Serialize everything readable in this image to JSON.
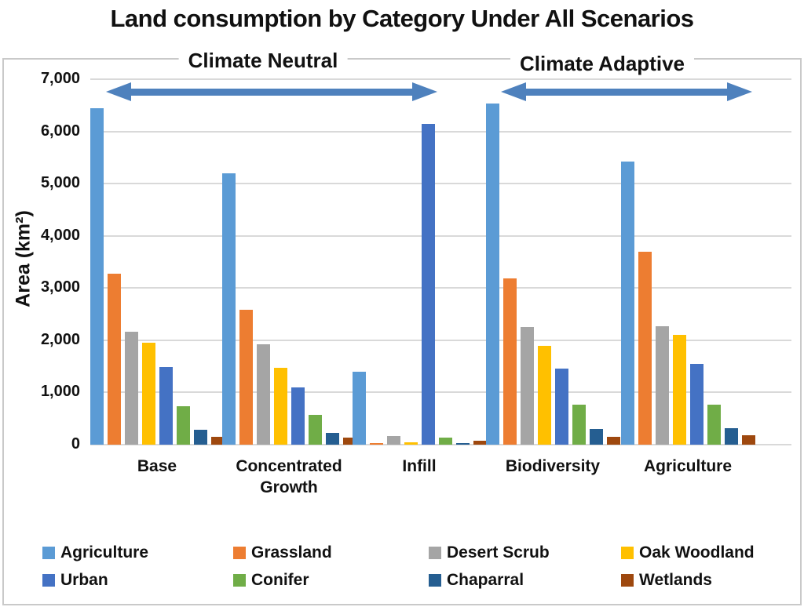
{
  "title": "Land consumption by Category Under All Scenarios",
  "annotations": {
    "left_group_label": "Climate Neutral",
    "right_group_label": "Climate Adaptive"
  },
  "colors": {
    "arrow": "#4E81BD",
    "gridline": "#D9D9D9",
    "frame_border": "#C9C9C9",
    "text": "#111111"
  },
  "chart_data": {
    "type": "bar",
    "title": "Land consumption by Category Under All Scenarios",
    "xlabel": "",
    "ylabel": "Area (km²)",
    "ylim": [
      0,
      7000
    ],
    "ytick_interval": 1000,
    "yticks": [
      "0",
      "1,000",
      "2,000",
      "3,000",
      "4,000",
      "5,000",
      "6,000",
      "7,000"
    ],
    "grid": true,
    "legend_position": "bottom",
    "categories": [
      "Base",
      "Concentrated Growth",
      "Infill",
      "Biodiversity",
      "Agriculture"
    ],
    "category_groups": [
      {
        "label": "Climate Neutral",
        "categories": [
          "Base",
          "Concentrated Growth",
          "Infill"
        ]
      },
      {
        "label": "Climate Adaptive",
        "categories": [
          "Biodiversity",
          "Agriculture"
        ]
      }
    ],
    "series": [
      {
        "name": "Agriculture",
        "color": "#5B9BD5",
        "values": [
          6450,
          5200,
          1400,
          6530,
          5430
        ]
      },
      {
        "name": "Grassland",
        "color": "#ED7D31",
        "values": [
          3280,
          2580,
          30,
          3180,
          3700
        ]
      },
      {
        "name": "Desert Scrub",
        "color": "#A5A5A5",
        "values": [
          2160,
          1920,
          170,
          2250,
          2270
        ]
      },
      {
        "name": "Oak Woodland",
        "color": "#FFC000",
        "values": [
          1950,
          1470,
          40,
          1900,
          2100
        ]
      },
      {
        "name": "Urban",
        "color": "#4472C4",
        "values": [
          1490,
          1100,
          6150,
          1450,
          1550
        ]
      },
      {
        "name": "Conifer",
        "color": "#70AD47",
        "values": [
          730,
          570,
          130,
          760,
          760
        ]
      },
      {
        "name": "Chaparral",
        "color": "#255E91",
        "values": [
          290,
          220,
          20,
          300,
          310
        ]
      },
      {
        "name": "Wetlands",
        "color": "#9E480E",
        "values": [
          150,
          140,
          70,
          150,
          180
        ]
      }
    ]
  }
}
